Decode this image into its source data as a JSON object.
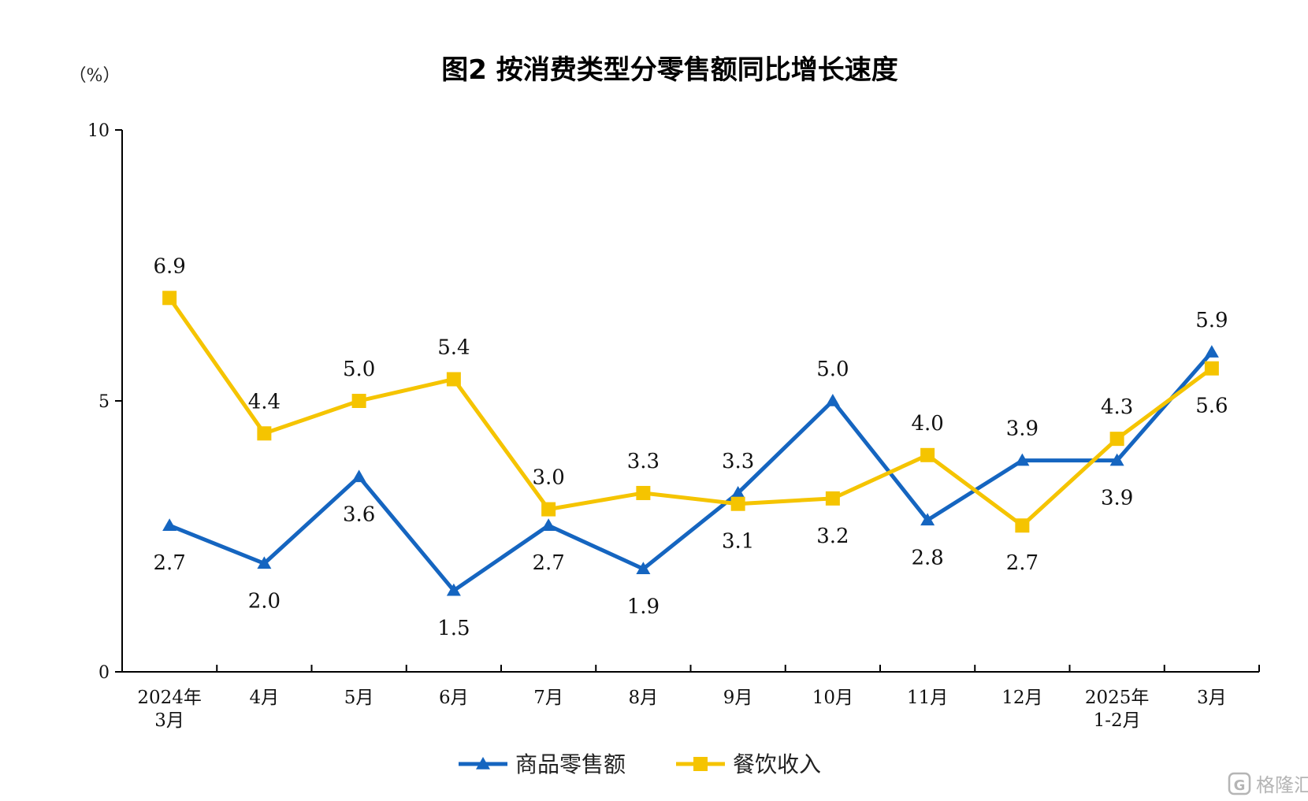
{
  "chart_data": {
    "type": "line",
    "title": "图2  按消费类型分零售额同比增长速度",
    "ylabel": "（%）",
    "ylim": [
      0,
      10
    ],
    "yticks": [
      "0",
      "5",
      "10"
    ],
    "categories": [
      [
        "2024年",
        "3月"
      ],
      [
        "4月"
      ],
      [
        "5月"
      ],
      [
        "6月"
      ],
      [
        "7月"
      ],
      [
        "8月"
      ],
      [
        "9月"
      ],
      [
        "10月"
      ],
      [
        "11月"
      ],
      [
        "12月"
      ],
      [
        "2025年",
        "1-2月"
      ],
      [
        "3月"
      ]
    ],
    "series": [
      {
        "name": "商品零售额",
        "color": "#1565c0",
        "marker": "triangle",
        "values": [
          2.7,
          2.0,
          3.6,
          1.5,
          2.7,
          1.9,
          3.3,
          5.0,
          2.8,
          3.9,
          3.9,
          5.9
        ],
        "labels": [
          "2.7",
          "2.0",
          "3.6",
          "1.5",
          "2.7",
          "1.9",
          "3.3",
          "5.0",
          "2.8",
          "3.9",
          "3.9",
          "5.9"
        ]
      },
      {
        "name": "餐饮收入",
        "color": "#f5c400",
        "marker": "square",
        "values": [
          6.9,
          4.4,
          5.0,
          5.4,
          3.0,
          3.3,
          3.1,
          3.2,
          4.0,
          2.7,
          4.3,
          5.6
        ],
        "labels": [
          "6.9",
          "4.4",
          "5.0",
          "5.4",
          "3.0",
          "3.3",
          "3.1",
          "3.2",
          "4.0",
          "2.7",
          "4.3",
          "5.6"
        ]
      }
    ],
    "legend": "bottom-center",
    "grid": false
  },
  "watermark": {
    "text": "格隆汇",
    "icon": "g-logo-icon"
  }
}
